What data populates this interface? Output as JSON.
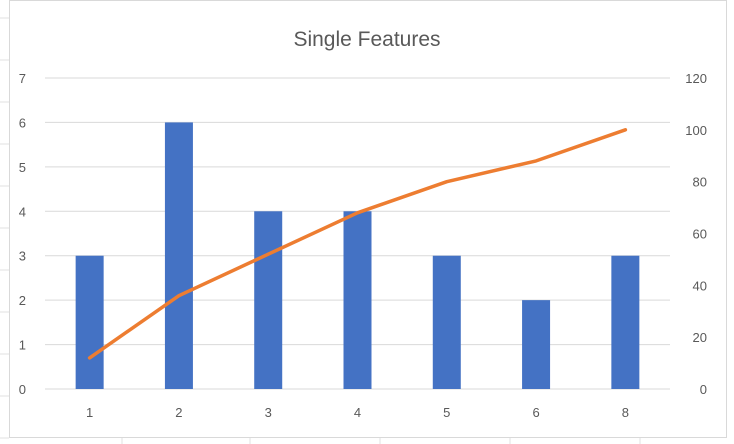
{
  "chart_data": {
    "type": "bar",
    "title": "Single Features",
    "categories": [
      "1",
      "2",
      "3",
      "4",
      "5",
      "6",
      "8"
    ],
    "series": [
      {
        "type": "bar",
        "axis": "primary",
        "color": "#4472C4",
        "values": [
          3,
          6,
          4,
          4,
          3,
          2,
          3
        ]
      },
      {
        "type": "line",
        "axis": "secondary",
        "color": "#ED7D31",
        "values": [
          12,
          36,
          52,
          68,
          80,
          88,
          100
        ]
      }
    ],
    "ylim": [
      0,
      7
    ],
    "y_ticks": [
      "0",
      "1",
      "2",
      "3",
      "4",
      "5",
      "6",
      "7"
    ],
    "y2lim": [
      0,
      120
    ],
    "y2_ticks": [
      "0",
      "20",
      "40",
      "60",
      "80",
      "100",
      "120"
    ],
    "grid": true,
    "legend": "none"
  },
  "colors": {
    "gridline": "#d9d9d9",
    "axis_text": "#595959",
    "sheet_gridline": "#e1e1e1"
  }
}
